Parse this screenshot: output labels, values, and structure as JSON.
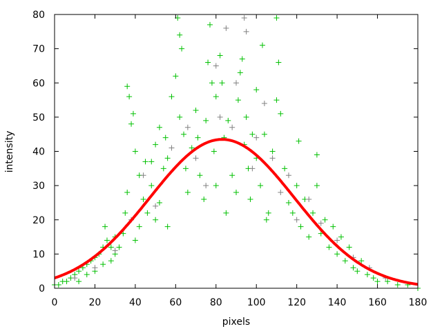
{
  "chart_data": {
    "type": "scatter",
    "title": "",
    "xlabel": "pixels",
    "ylabel": "intensity",
    "xlim": [
      0,
      180
    ],
    "ylim": [
      0,
      80
    ],
    "xticks": [
      0,
      20,
      40,
      60,
      80,
      100,
      120,
      140,
      160,
      180
    ],
    "yticks": [
      0,
      10,
      20,
      30,
      40,
      50,
      60,
      70,
      80
    ],
    "grid": false,
    "legend": "none",
    "series": [
      {
        "type": "scatter",
        "marker": "plus",
        "color": "#00c000",
        "points": [
          [
            0,
            1
          ],
          [
            2,
            1
          ],
          [
            4,
            2
          ],
          [
            6,
            2
          ],
          [
            8,
            3
          ],
          [
            10,
            4
          ],
          [
            12,
            5
          ],
          [
            14,
            6
          ],
          [
            16,
            7
          ],
          [
            18,
            8
          ],
          [
            20,
            9
          ],
          [
            22,
            10
          ],
          [
            24,
            12
          ],
          [
            25,
            18
          ],
          [
            26,
            14
          ],
          [
            28,
            12
          ],
          [
            30,
            15
          ],
          [
            12,
            2
          ],
          [
            16,
            4
          ],
          [
            20,
            5
          ],
          [
            24,
            7
          ],
          [
            28,
            8
          ],
          [
            30,
            10
          ],
          [
            32,
            12
          ],
          [
            34,
            16
          ],
          [
            35,
            22
          ],
          [
            36,
            28
          ],
          [
            36,
            59
          ],
          [
            37,
            56
          ],
          [
            38,
            48
          ],
          [
            39,
            51
          ],
          [
            40,
            40
          ],
          [
            40,
            14
          ],
          [
            42,
            18
          ],
          [
            42,
            33
          ],
          [
            44,
            26
          ],
          [
            45,
            37
          ],
          [
            46,
            22
          ],
          [
            48,
            30
          ],
          [
            48,
            37
          ],
          [
            50,
            42
          ],
          [
            50,
            20
          ],
          [
            52,
            47
          ],
          [
            52,
            25
          ],
          [
            54,
            35
          ],
          [
            55,
            44
          ],
          [
            56,
            38
          ],
          [
            56,
            18
          ],
          [
            58,
            56
          ],
          [
            60,
            62
          ],
          [
            61,
            79
          ],
          [
            62,
            74
          ],
          [
            63,
            70
          ],
          [
            62,
            50
          ],
          [
            64,
            45
          ],
          [
            65,
            35
          ],
          [
            66,
            28
          ],
          [
            68,
            41
          ],
          [
            70,
            52
          ],
          [
            71,
            44
          ],
          [
            72,
            33
          ],
          [
            74,
            26
          ],
          [
            75,
            49
          ],
          [
            76,
            66
          ],
          [
            77,
            77
          ],
          [
            78,
            60
          ],
          [
            79,
            40
          ],
          [
            80,
            56
          ],
          [
            80,
            30
          ],
          [
            82,
            68
          ],
          [
            83,
            60
          ],
          [
            84,
            44
          ],
          [
            85,
            22
          ],
          [
            86,
            49
          ],
          [
            88,
            33
          ],
          [
            90,
            28
          ],
          [
            91,
            55
          ],
          [
            92,
            63
          ],
          [
            93,
            67
          ],
          [
            94,
            42
          ],
          [
            95,
            50
          ],
          [
            96,
            35
          ],
          [
            97,
            26
          ],
          [
            98,
            45
          ],
          [
            100,
            38
          ],
          [
            100,
            58
          ],
          [
            102,
            30
          ],
          [
            103,
            71
          ],
          [
            104,
            45
          ],
          [
            105,
            20
          ],
          [
            106,
            22
          ],
          [
            108,
            40
          ],
          [
            110,
            79
          ],
          [
            110,
            55
          ],
          [
            111,
            66
          ],
          [
            112,
            51
          ],
          [
            114,
            35
          ],
          [
            116,
            25
          ],
          [
            118,
            22
          ],
          [
            120,
            30
          ],
          [
            121,
            43
          ],
          [
            122,
            18
          ],
          [
            124,
            26
          ],
          [
            126,
            15
          ],
          [
            128,
            22
          ],
          [
            130,
            39
          ],
          [
            130,
            30
          ],
          [
            132,
            16
          ],
          [
            134,
            20
          ],
          [
            136,
            12
          ],
          [
            138,
            18
          ],
          [
            140,
            10
          ],
          [
            142,
            15
          ],
          [
            144,
            8
          ],
          [
            146,
            12
          ],
          [
            148,
            6
          ],
          [
            150,
            5
          ],
          [
            152,
            8
          ],
          [
            155,
            4
          ],
          [
            158,
            3
          ],
          [
            160,
            2
          ],
          [
            165,
            2
          ],
          [
            170,
            1
          ],
          [
            175,
            1
          ],
          [
            180,
            0
          ]
        ]
      },
      {
        "type": "scatter",
        "marker": "plus",
        "color": "#808080",
        "points": [
          [
            10,
            3
          ],
          [
            20,
            6
          ],
          [
            30,
            11
          ],
          [
            38,
            20
          ],
          [
            44,
            33
          ],
          [
            50,
            24
          ],
          [
            58,
            41
          ],
          [
            66,
            47
          ],
          [
            70,
            38
          ],
          [
            75,
            30
          ],
          [
            80,
            65
          ],
          [
            82,
            50
          ],
          [
            85,
            76
          ],
          [
            88,
            47
          ],
          [
            90,
            60
          ],
          [
            94,
            79
          ],
          [
            95,
            75
          ],
          [
            98,
            35
          ],
          [
            100,
            44
          ],
          [
            104,
            54
          ],
          [
            108,
            38
          ],
          [
            112,
            28
          ],
          [
            116,
            33
          ],
          [
            120,
            20
          ],
          [
            126,
            26
          ],
          [
            132,
            19
          ],
          [
            140,
            14
          ],
          [
            148,
            9
          ],
          [
            156,
            6
          ],
          [
            164,
            3
          ]
        ]
      },
      {
        "type": "line",
        "color": "#ff0000",
        "fit": "gaussian",
        "amplitude": 43.5,
        "center": 83,
        "sigma": 35.9
      }
    ]
  }
}
